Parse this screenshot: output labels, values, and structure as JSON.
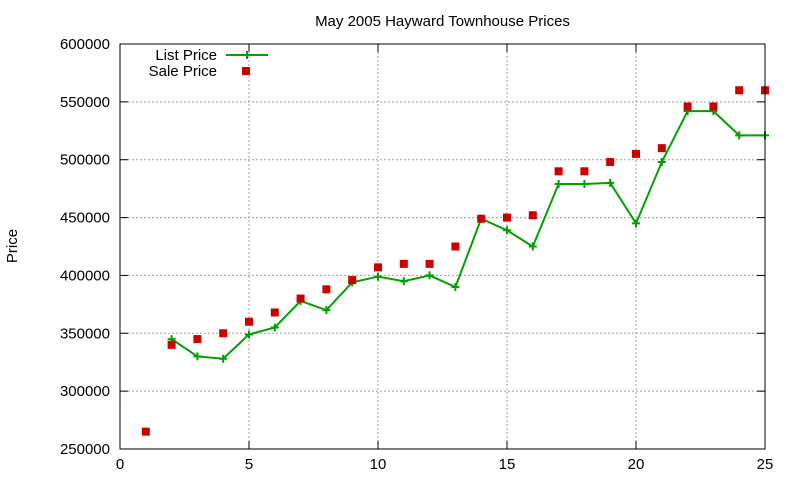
{
  "chart_data": {
    "type": "line",
    "title": "May 2005 Hayward Townhouse Prices",
    "xlabel": "",
    "ylabel": "Price",
    "xlim": [
      0,
      25
    ],
    "ylim": [
      250000,
      600000
    ],
    "xticks": [
      0,
      5,
      10,
      15,
      20,
      25
    ],
    "yticks": [
      250000,
      300000,
      350000,
      400000,
      450000,
      500000,
      550000,
      600000
    ],
    "grid": true,
    "legend_position": "top-left",
    "series": [
      {
        "name": "List Price",
        "kind": "line-with-markers",
        "marker": "plus",
        "color": "#00a000",
        "x": [
          2,
          3,
          4,
          5,
          6,
          7,
          8,
          9,
          10,
          11,
          12,
          13,
          14,
          15,
          16,
          17,
          18,
          19,
          20,
          21,
          22,
          23,
          24,
          25
        ],
        "y": [
          345000,
          330000,
          328000,
          349000,
          355000,
          378000,
          370000,
          394000,
          399000,
          395000,
          400000,
          390000,
          449000,
          439000,
          425000,
          479000,
          479000,
          480000,
          445000,
          498000,
          542000,
          542000,
          521000,
          521000
        ]
      },
      {
        "name": "Sale Price",
        "kind": "points",
        "marker": "square",
        "color": "#cc0000",
        "x": [
          1,
          2,
          3,
          4,
          5,
          6,
          7,
          8,
          9,
          10,
          11,
          12,
          13,
          14,
          15,
          16,
          17,
          18,
          19,
          20,
          21,
          22,
          23,
          24,
          25
        ],
        "y": [
          265000,
          340000,
          345000,
          350000,
          360000,
          368000,
          380000,
          388000,
          396000,
          407000,
          410000,
          410000,
          425000,
          449000,
          450000,
          452000,
          490000,
          490000,
          498000,
          505000,
          510000,
          546000,
          546000,
          560000,
          560000
        ]
      }
    ]
  }
}
